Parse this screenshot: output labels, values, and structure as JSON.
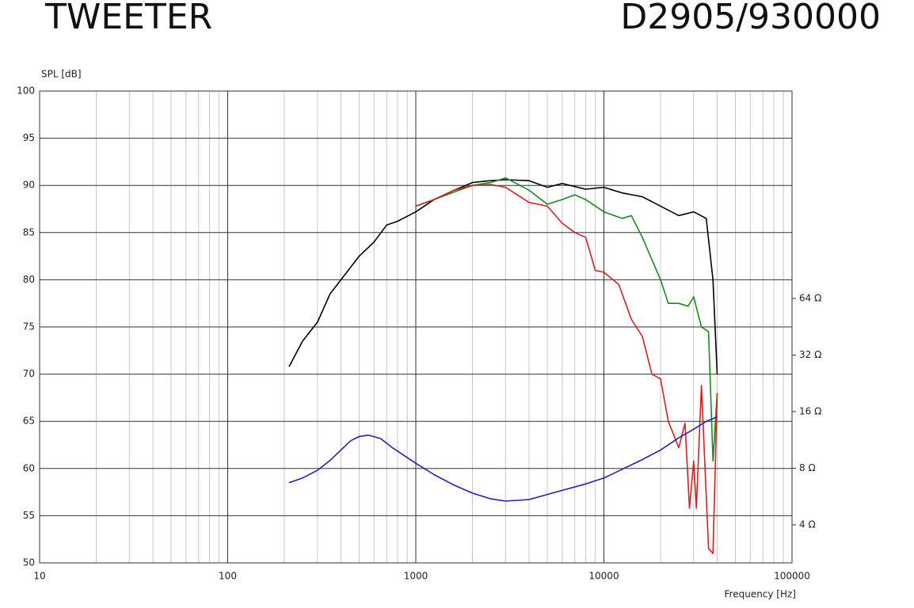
{
  "chart_data": {
    "type": "line",
    "title": "TWEETER",
    "subtitle": "D2905/930000",
    "y_label": "SPL [dB]",
    "x_label": "Frequency [Hz]",
    "xscale": "log",
    "y2scale": "log",
    "grid": true,
    "xlim": [
      10,
      100000
    ],
    "xticks": [
      10,
      100,
      1000,
      10000,
      100000
    ],
    "xminorticks": [
      20,
      30,
      40,
      50,
      60,
      70,
      80,
      90,
      200,
      300,
      400,
      500,
      600,
      700,
      800,
      900,
      2000,
      3000,
      4000,
      5000,
      6000,
      7000,
      8000,
      9000,
      20000,
      30000,
      40000,
      50000,
      60000,
      70000,
      80000,
      90000
    ],
    "ylim": [
      50,
      100
    ],
    "yticks": [
      50,
      55,
      60,
      65,
      70,
      75,
      80,
      85,
      90,
      95,
      100
    ],
    "y2lim": [
      2.51,
      812
    ],
    "y2ticks": [
      {
        "value": 4,
        "label": "4 Ω"
      },
      {
        "value": 8,
        "label": "8 Ω"
      },
      {
        "value": 16,
        "label": "16 Ω"
      },
      {
        "value": 32,
        "label": "32 Ω"
      },
      {
        "value": 64,
        "label": "64 Ω"
      }
    ],
    "series": [
      {
        "color": "#000000",
        "x": [
          212,
          250,
          300,
          350,
          400,
          500,
          600,
          700,
          800,
          1000,
          1250,
          1600,
          2000,
          2500,
          3000,
          4000,
          5000,
          6000,
          8000,
          10000,
          12500,
          16000,
          20000,
          25000,
          30000,
          35000,
          38000,
          40000
        ],
        "values": [
          70.8,
          73.5,
          75.5,
          78.5,
          80,
          82.5,
          84,
          85.8,
          86.2,
          87.2,
          88.5,
          89.5,
          90.3,
          90.5,
          90.6,
          90.5,
          89.8,
          90.2,
          89.6,
          89.8,
          89.2,
          88.8,
          87.8,
          86.8,
          87.2,
          86.5,
          80,
          70
        ]
      },
      {
        "color": "#1a8a1a",
        "x": [
          1000,
          1250,
          1600,
          2000,
          2500,
          3000,
          4000,
          5000,
          6000,
          7000,
          8000,
          10000,
          12500,
          14000,
          16000,
          20000,
          22000,
          25000,
          28000,
          30000,
          33000,
          36000,
          38000,
          40000
        ],
        "values": [
          87.8,
          88.5,
          89.3,
          90,
          90.3,
          90.8,
          89.5,
          88,
          88.5,
          89,
          88.5,
          87.2,
          86.5,
          86.8,
          84.5,
          80,
          77.5,
          77.5,
          77.2,
          78.2,
          75,
          74.5,
          60.8,
          68
        ]
      },
      {
        "color": "#d42020",
        "x": [
          1000,
          1250,
          1600,
          2000,
          2500,
          3000,
          4000,
          5000,
          6000,
          7000,
          8000,
          9000,
          10000,
          12000,
          14000,
          16000,
          18000,
          20000,
          22000,
          25000,
          27000,
          28500,
          30000,
          31000,
          33000,
          36000,
          38000,
          40000
        ],
        "values": [
          87.8,
          88.5,
          89.5,
          90,
          90.1,
          89.8,
          88.2,
          87.8,
          86,
          85,
          84.5,
          81,
          80.8,
          79.5,
          75.8,
          74,
          70,
          69.5,
          65,
          62.2,
          64.8,
          55.8,
          60.8,
          55.8,
          68.8,
          51.5,
          51,
          68
        ]
      },
      {
        "color": "#2020c0",
        "axis": "y2",
        "x": [
          212,
          250,
          300,
          350,
          400,
          450,
          500,
          560,
          650,
          750,
          1000,
          1250,
          1600,
          2000,
          2500,
          3000,
          4000,
          5000,
          6000,
          8000,
          10000,
          12500,
          16000,
          20000,
          25000,
          30000,
          35000,
          40000
        ],
        "values": [
          6.7,
          7.1,
          7.8,
          8.8,
          10,
          11.2,
          11.8,
          12,
          11.5,
          10.3,
          8.5,
          7.4,
          6.5,
          5.9,
          5.5,
          5.35,
          5.45,
          5.8,
          6.1,
          6.6,
          7.1,
          7.9,
          8.9,
          10,
          11.6,
          12.9,
          14.2,
          15
        ]
      }
    ]
  }
}
